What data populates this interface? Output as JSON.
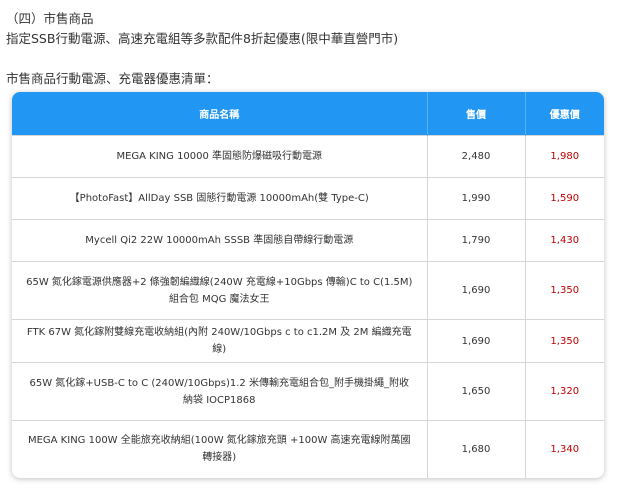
{
  "section_title": "（四）市售商品",
  "promo_text": "指定SSB行動電源、高速充電組等多款配件8折起優惠(限中華直營門市)",
  "list_title": "市售商品行動電源、充電器優惠清單：",
  "table": {
    "headers": [
      "商品名稱",
      "售價",
      "優惠價"
    ],
    "rows": [
      {
        "name": "MEGA KING 10000 準固態防爆磁吸行動電源",
        "price": "2,480",
        "discount": "1,980"
      },
      {
        "name": "【PhotoFast】AllDay SSB 固態行動電源 10000mAh(雙 Type-C)",
        "price": "1,990",
        "discount": "1,590"
      },
      {
        "name": "Mycell Qi2 22W 10000mAh SSSB 準固態自帶線行動電源",
        "price": "1,790",
        "discount": "1,430"
      },
      {
        "name": "65W 氮化鎵電源供應器+2 條強韌編織線(240W 充電線+10Gbps 傳輸)C to C(1.5M) 組合包 MQG 魔法女王",
        "price": "1,690",
        "discount": "1,350"
      },
      {
        "name": "FTK 67W 氮化鎵附雙線充電收納組(內附 240W/10Gbps c to c1.2M 及 2M 編織充電線)",
        "price": "1,690",
        "discount": "1,350"
      },
      {
        "name": "65W 氮化鎵+USB-C to C (240W/10Gbps)1.2 米傳輸充電組合包_附手機掛繩_附收納袋 IOCP1868",
        "price": "1,650",
        "discount": "1,320"
      },
      {
        "name": "MEGA KING 100W 全能旅充收納組(100W 氮化鎵旅充頭 +100W 高速充電線附萬國轉接器)",
        "price": "1,680",
        "discount": "1,340"
      }
    ]
  },
  "colors": {
    "header": "#2196f3",
    "discount": "#c00000"
  }
}
